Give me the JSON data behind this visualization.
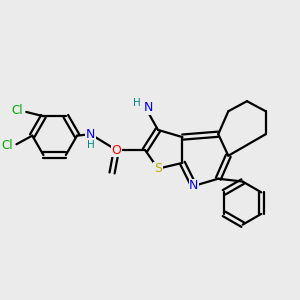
{
  "background_color": "#ebebeb",
  "bond_color": "#000000",
  "atom_colors": {
    "N": "#0000ff",
    "S": "#bbaa00",
    "O": "#ff0000",
    "Cl": "#00aa00",
    "NH": "#008888",
    "C": "#000000"
  },
  "figsize": [
    3.0,
    3.0
  ],
  "dpi": 100
}
